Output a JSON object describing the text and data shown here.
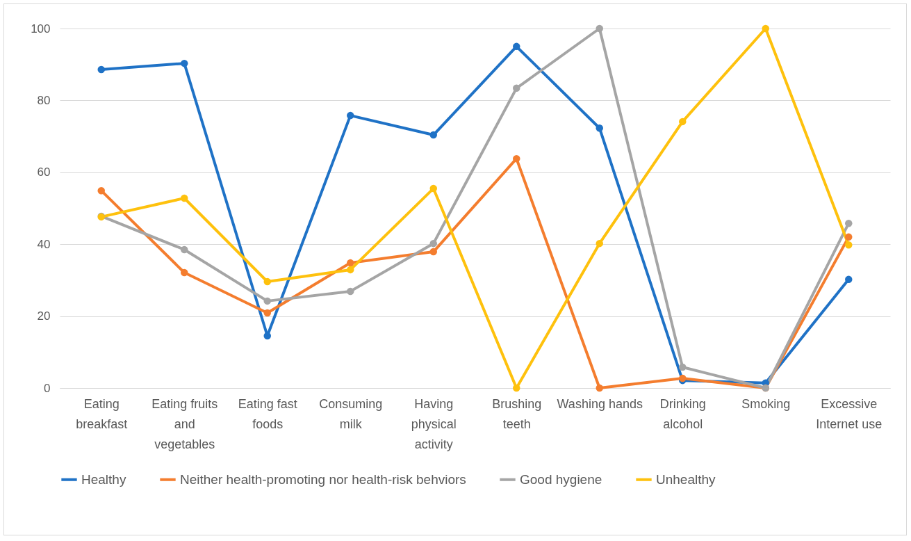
{
  "chart_data": {
    "type": "line",
    "categories": [
      "Eating breakfast",
      "Eating fruits and vegetables",
      "Eating fast foods",
      "Consuming milk",
      "Having physical activity",
      "Brushing teeth",
      "Washing hands",
      "Drinking alcohol",
      "Smoking",
      "Excessive Internet use"
    ],
    "series": [
      {
        "name": "Healthy",
        "color": "#1f72c6",
        "values": [
          88.6,
          90.3,
          14.5,
          75.8,
          70.4,
          95,
          72.3,
          2.1,
          1.4,
          30.2
        ]
      },
      {
        "name": "Neither health-promoting nor health-risk behviors",
        "color": "#f47d2e",
        "values": [
          54.9,
          32.1,
          20.9,
          34.8,
          37.9,
          63.8,
          0,
          2.7,
          0,
          42
        ]
      },
      {
        "name": "Good hygiene",
        "color": "#a5a5a5",
        "values": [
          47.8,
          38.5,
          24.2,
          26.9,
          40.2,
          83.4,
          100,
          5.8,
          0,
          45.8
        ]
      },
      {
        "name": "Unhealthy",
        "color": "#fec10d",
        "values": [
          47.6,
          52.8,
          29.6,
          32.9,
          55.5,
          0,
          40.2,
          74.1,
          100,
          39.8
        ]
      }
    ],
    "ylim": [
      0,
      100
    ],
    "yticks": [
      0,
      20,
      40,
      60,
      80,
      100
    ],
    "grid": "y",
    "legend": "bottom",
    "marker": "circle",
    "line_style": "solid"
  }
}
